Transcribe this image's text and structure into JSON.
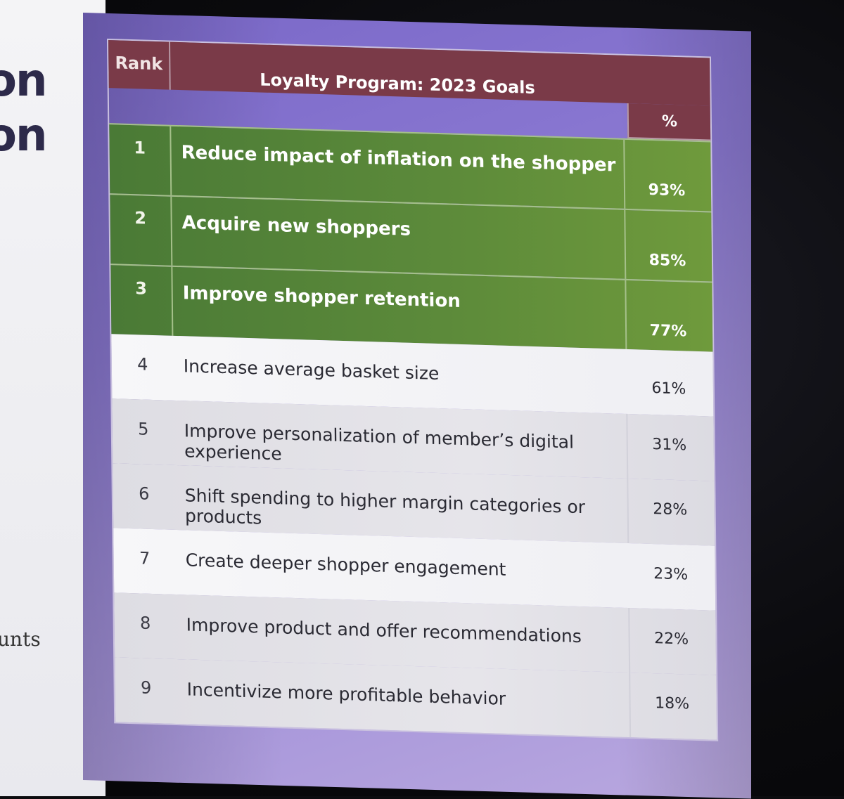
{
  "left_slide": {
    "fragment_1": "on",
    "fragment_2": "on",
    "fragment_3": "unts"
  },
  "table": {
    "header": {
      "rank": "Rank",
      "title": "Loyalty Program: 2023 Goals",
      "pct": "%"
    },
    "rows": [
      {
        "rank": "1",
        "goal": "Reduce impact of inflation on the shopper",
        "pct": "93%"
      },
      {
        "rank": "2",
        "goal": "Acquire new shoppers",
        "pct": "85%"
      },
      {
        "rank": "3",
        "goal": "Improve shopper retention",
        "pct": "77%"
      },
      {
        "rank": "4",
        "goal": "Increase average basket size",
        "pct": "61%"
      },
      {
        "rank": "5",
        "goal": "Improve personalization of member’s digital experience",
        "pct": "31%"
      },
      {
        "rank": "6",
        "goal": "Shift spending to higher margin categories or products",
        "pct": "28%"
      },
      {
        "rank": "7",
        "goal": "Create deeper shopper engagement",
        "pct": "23%"
      },
      {
        "rank": "8",
        "goal": "Improve product and offer recommendations",
        "pct": "22%"
      },
      {
        "rank": "9",
        "goal": "Incentivize more profitable behavior",
        "pct": "18%"
      }
    ]
  },
  "colors": {
    "header": "#7a3a48",
    "highlight": "#5c8a3a",
    "panel": "#8b79d2"
  }
}
